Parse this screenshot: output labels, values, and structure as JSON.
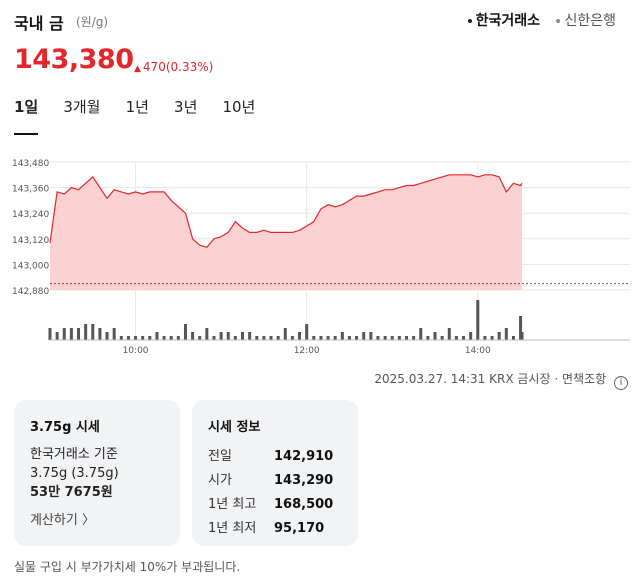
{
  "header": {
    "title": "국내 금",
    "unit": "(원/g)",
    "sources": [
      {
        "label": "한국거래소",
        "active": true
      },
      {
        "label": "신한은행",
        "active": false
      }
    ]
  },
  "price": {
    "current": "143,380",
    "change": "470",
    "change_pct": "(0.33%)",
    "direction": "up",
    "up_color": "#e3262a"
  },
  "tabs": [
    "1일",
    "3개월",
    "1년",
    "3년",
    "10년"
  ],
  "active_tab": 0,
  "chart_data": {
    "type": "area",
    "y_ticks": [
      "143,480",
      "143,360",
      "143,240",
      "143,120",
      "143,000",
      "142,880"
    ],
    "x_ticks": [
      "10:00",
      "12:00",
      "14:00"
    ],
    "ylim": [
      142880,
      143480
    ],
    "baseline": 142910,
    "line_color": "#e3262a",
    "fill_color": "#fbd1d1",
    "x": [
      "09:00",
      "09:05",
      "09:10",
      "09:15",
      "09:20",
      "09:25",
      "09:30",
      "09:35",
      "09:40",
      "09:45",
      "09:50",
      "09:55",
      "10:00",
      "10:05",
      "10:10",
      "10:15",
      "10:20",
      "10:25",
      "10:30",
      "10:35",
      "10:40",
      "10:45",
      "10:50",
      "10:55",
      "11:00",
      "11:05",
      "11:10",
      "11:15",
      "11:20",
      "11:25",
      "11:30",
      "11:35",
      "11:40",
      "11:45",
      "11:50",
      "11:55",
      "12:00",
      "12:05",
      "12:10",
      "12:15",
      "12:20",
      "12:25",
      "12:30",
      "12:35",
      "12:40",
      "12:45",
      "12:50",
      "12:55",
      "13:00",
      "13:05",
      "13:10",
      "13:15",
      "13:20",
      "13:25",
      "13:30",
      "13:35",
      "13:40",
      "13:45",
      "13:50",
      "13:55",
      "14:00",
      "14:05",
      "14:10",
      "14:15",
      "14:20",
      "14:25",
      "14:30",
      "14:31"
    ],
    "y": [
      143100,
      143340,
      143330,
      143360,
      143350,
      143380,
      143410,
      143360,
      143310,
      143350,
      143340,
      143330,
      143340,
      143330,
      143340,
      143340,
      143340,
      143300,
      143270,
      143240,
      143120,
      143090,
      143080,
      143120,
      143130,
      143150,
      143200,
      143170,
      143150,
      143150,
      143160,
      143150,
      143150,
      143150,
      143150,
      143160,
      143180,
      143200,
      143260,
      143280,
      143270,
      143280,
      143300,
      143320,
      143320,
      143330,
      143340,
      143350,
      143350,
      143360,
      143370,
      143370,
      143380,
      143390,
      143400,
      143410,
      143420,
      143420,
      143420,
      143420,
      143410,
      143420,
      143420,
      143410,
      143340,
      143380,
      143370,
      143380
    ],
    "volume": [
      3,
      2,
      3,
      3,
      3,
      4,
      4,
      3,
      2,
      3,
      1,
      1,
      1,
      1,
      1,
      2,
      1,
      1,
      1,
      4,
      2,
      1,
      3,
      1,
      2,
      2,
      1,
      2,
      2,
      1,
      1,
      1,
      1,
      3,
      1,
      2,
      4,
      1,
      1,
      1,
      1,
      2,
      1,
      1,
      2,
      2,
      1,
      1,
      1,
      1,
      1,
      1,
      3,
      1,
      2,
      1,
      3,
      1,
      1,
      2,
      10,
      1,
      1,
      2,
      3,
      1,
      6,
      2
    ]
  },
  "meta": {
    "timestamp": "2025.03.27. 14:31",
    "market": "KRX 금시장",
    "disclaimer": "면책조항",
    "info_glyph": "i"
  },
  "card1": {
    "title": "3.75g 시세",
    "line1": "한국거래소 기준",
    "line2": "3.75g (3.75g)",
    "value": "53만 7675원",
    "calc_label": "계산하기 〉"
  },
  "card2": {
    "title": "시세 정보",
    "rows": [
      {
        "label": "전일",
        "value": "142,910"
      },
      {
        "label": "시가",
        "value": "143,290"
      },
      {
        "label": "1년 최고",
        "value": "168,500"
      },
      {
        "label": "1년 최저",
        "value": "95,170"
      }
    ]
  },
  "footnote": "실물 구입 시 부가가치세 10%가 부과됩니다."
}
